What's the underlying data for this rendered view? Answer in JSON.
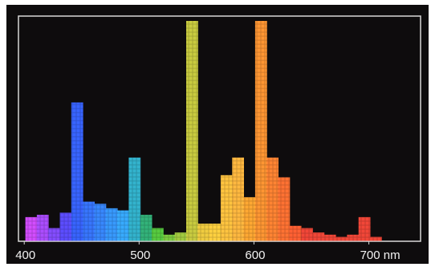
{
  "chart_data": {
    "type": "bar",
    "x_unit": "nm",
    "xlim": [
      395,
      745
    ],
    "ylim": [
      0,
      100
    ],
    "grid": false,
    "x_ticks": [
      {
        "value": 400,
        "label": "400"
      },
      {
        "value": 500,
        "label": "500"
      },
      {
        "value": 600,
        "label": "600"
      },
      {
        "value": 700,
        "label": "700 nm"
      }
    ],
    "bars": [
      {
        "x": 406,
        "y": 11
      },
      {
        "x": 416,
        "y": 12
      },
      {
        "x": 426,
        "y": 6
      },
      {
        "x": 436,
        "y": 13
      },
      {
        "x": 446,
        "y": 63
      },
      {
        "x": 456,
        "y": 18
      },
      {
        "x": 466,
        "y": 17
      },
      {
        "x": 476,
        "y": 15
      },
      {
        "x": 486,
        "y": 14
      },
      {
        "x": 496,
        "y": 38
      },
      {
        "x": 506,
        "y": 12
      },
      {
        "x": 516,
        "y": 6
      },
      {
        "x": 526,
        "y": 3
      },
      {
        "x": 536,
        "y": 4
      },
      {
        "x": 546,
        "y": 100
      },
      {
        "x": 556,
        "y": 8
      },
      {
        "x": 566,
        "y": 8
      },
      {
        "x": 576,
        "y": 30
      },
      {
        "x": 586,
        "y": 38
      },
      {
        "x": 596,
        "y": 20
      },
      {
        "x": 606,
        "y": 100
      },
      {
        "x": 616,
        "y": 38
      },
      {
        "x": 626,
        "y": 29
      },
      {
        "x": 636,
        "y": 7
      },
      {
        "x": 646,
        "y": 6
      },
      {
        "x": 656,
        "y": 4
      },
      {
        "x": 666,
        "y": 3
      },
      {
        "x": 676,
        "y": 2
      },
      {
        "x": 686,
        "y": 3
      },
      {
        "x": 696,
        "y": 11
      },
      {
        "x": 706,
        "y": 2
      }
    ],
    "colors": {
      "background": "#0e0c0d",
      "frame_border": "#d8d8d8",
      "tick_text": "#f2f2f2"
    }
  }
}
